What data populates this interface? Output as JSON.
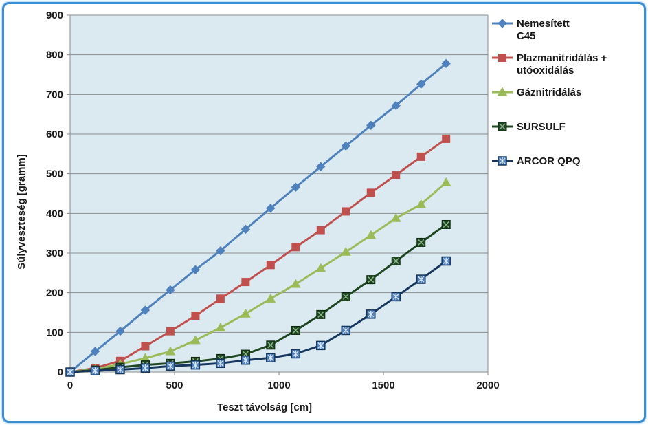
{
  "chart_data": {
    "type": "line",
    "xlabel": "Teszt távolság [cm]",
    "ylabel": "Súlyveszteség [gramm]",
    "xlim": [
      0,
      2000
    ],
    "ylim": [
      0,
      900
    ],
    "xticks": [
      0,
      500,
      1000,
      1500,
      2000
    ],
    "yticks": [
      0,
      100,
      200,
      300,
      400,
      500,
      600,
      700,
      800,
      900
    ],
    "plot_background": "#dbeaf1",
    "grid": "horizontal",
    "legend_position": "right",
    "x": [
      0,
      120,
      240,
      360,
      480,
      600,
      720,
      840,
      960,
      1080,
      1200,
      1320,
      1440,
      1560,
      1680,
      1800
    ],
    "series": [
      {
        "name_lines": [
          "Nemesített",
          "C45"
        ],
        "color": "#4f81bd",
        "marker": "diamond",
        "values": [
          0,
          52,
          103,
          156,
          207,
          258,
          306,
          360,
          413,
          466,
          518,
          570,
          622,
          672,
          726,
          778
        ]
      },
      {
        "name_lines": [
          "Plazmanitridálás +",
          "utóoxidálás"
        ],
        "color": "#c0504d",
        "marker": "square",
        "values": [
          0,
          10,
          28,
          65,
          103,
          142,
          185,
          227,
          270,
          315,
          358,
          405,
          452,
          497,
          543,
          588
        ]
      },
      {
        "name_lines": [
          "Gáznitridálás"
        ],
        "color": "#9bbb59",
        "marker": "triangle",
        "values": [
          0,
          7,
          20,
          35,
          52,
          80,
          112,
          147,
          185,
          222,
          262,
          303,
          345,
          388,
          423,
          478
        ]
      },
      {
        "name_lines": [
          "SURSULF"
        ],
        "color": "#1e4620",
        "marker": "square-x",
        "values": [
          0,
          5,
          12,
          18,
          22,
          27,
          34,
          45,
          68,
          105,
          145,
          190,
          233,
          280,
          327,
          372
        ]
      },
      {
        "name_lines": [
          "ARCOR QPQ"
        ],
        "color": "#17365d",
        "marker": "square-star",
        "values": [
          0,
          3,
          6,
          10,
          15,
          18,
          22,
          30,
          36,
          46,
          67,
          105,
          146,
          190,
          234,
          280
        ]
      }
    ]
  }
}
